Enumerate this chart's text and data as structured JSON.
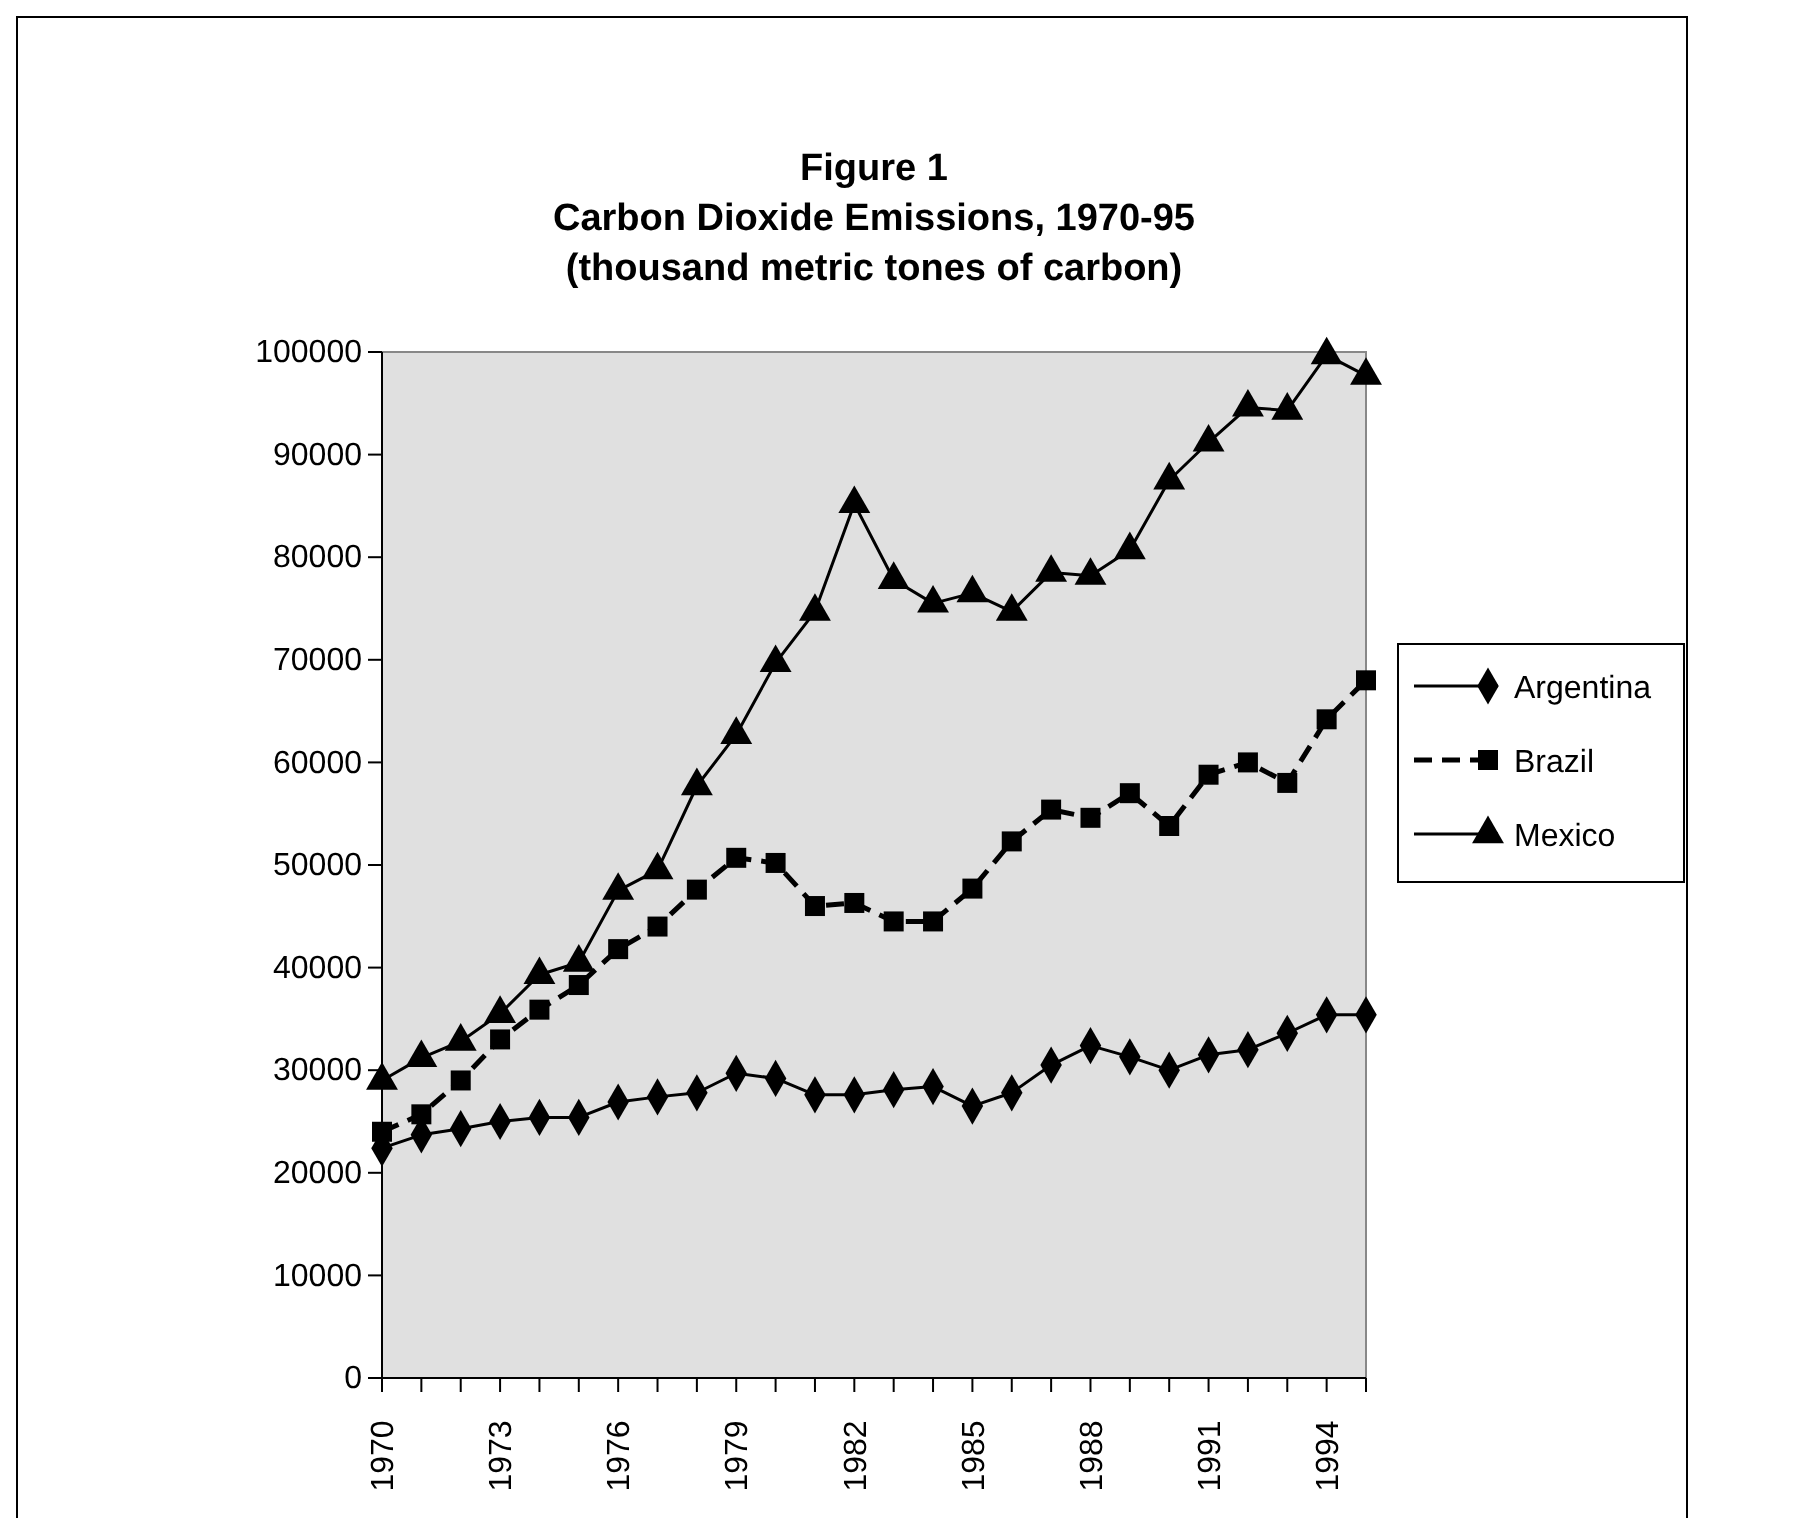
{
  "chart_data": {
    "type": "line",
    "title": "Figure 1",
    "subtitle": "Carbon Dioxide Emissions, 1970-95\n(thousand metric tones of carbon)",
    "x": [
      1970,
      1971,
      1972,
      1973,
      1974,
      1975,
      1976,
      1977,
      1978,
      1979,
      1980,
      1981,
      1982,
      1983,
      1984,
      1985,
      1986,
      1987,
      1988,
      1989,
      1990,
      1991,
      1992,
      1993,
      1994,
      1995
    ],
    "xlim": [
      1970,
      1995
    ],
    "xticks": [
      {
        "value": 1970,
        "label": "1970"
      },
      {
        "value": 1971,
        "label": null
      },
      {
        "value": 1972,
        "label": null
      },
      {
        "value": 1973,
        "label": "1973"
      },
      {
        "value": 1974,
        "label": null
      },
      {
        "value": 1975,
        "label": null
      },
      {
        "value": 1976,
        "label": "1976"
      },
      {
        "value": 1977,
        "label": null
      },
      {
        "value": 1978,
        "label": null
      },
      {
        "value": 1979,
        "label": "1979"
      },
      {
        "value": 1980,
        "label": null
      },
      {
        "value": 1981,
        "label": null
      },
      {
        "value": 1982,
        "label": "1982"
      },
      {
        "value": 1983,
        "label": null
      },
      {
        "value": 1984,
        "label": null
      },
      {
        "value": 1985,
        "label": "1985"
      },
      {
        "value": 1986,
        "label": null
      },
      {
        "value": 1987,
        "label": null
      },
      {
        "value": 1988,
        "label": "1988"
      },
      {
        "value": 1989,
        "label": null
      },
      {
        "value": 1990,
        "label": null
      },
      {
        "value": 1991,
        "label": "1991"
      },
      {
        "value": 1992,
        "label": null
      },
      {
        "value": 1993,
        "label": null
      },
      {
        "value": 1994,
        "label": "1994"
      },
      {
        "value": 1995,
        "label": null
      }
    ],
    "ylim": [
      0,
      100000
    ],
    "yticks": [
      0,
      10000,
      20000,
      30000,
      40000,
      50000,
      60000,
      70000,
      80000,
      90000,
      100000
    ],
    "grid": false,
    "legend": "right",
    "series": [
      {
        "name": "Argentina",
        "color": "#000000",
        "marker": "diamond",
        "line_style": "solid",
        "values": [
          22400,
          23700,
          24300,
          25000,
          25400,
          25400,
          26900,
          27400,
          27800,
          29700,
          29200,
          27600,
          27600,
          28100,
          28400,
          26500,
          27800,
          30500,
          32400,
          31300,
          30000,
          31500,
          32000,
          33600,
          35400,
          35400
        ]
      },
      {
        "name": "Brazil",
        "color": "#000000",
        "marker": "square",
        "line_style": "dashed",
        "values": [
          24000,
          25700,
          29000,
          33000,
          35900,
          38300,
          41800,
          44000,
          47600,
          50700,
          50200,
          46000,
          46300,
          44500,
          44500,
          47700,
          52300,
          55400,
          54600,
          57000,
          53800,
          58800,
          60000,
          58000,
          64200,
          68000
        ]
      },
      {
        "name": "Mexico",
        "color": "#000000",
        "marker": "triangle",
        "line_style": "solid",
        "values": [
          29000,
          31200,
          32800,
          35500,
          39300,
          40500,
          47500,
          49500,
          57700,
          62700,
          69700,
          74700,
          85200,
          77800,
          75500,
          76500,
          74700,
          78500,
          78200,
          80700,
          87500,
          91200,
          94600,
          94300,
          99700,
          97700
        ]
      }
    ]
  }
}
